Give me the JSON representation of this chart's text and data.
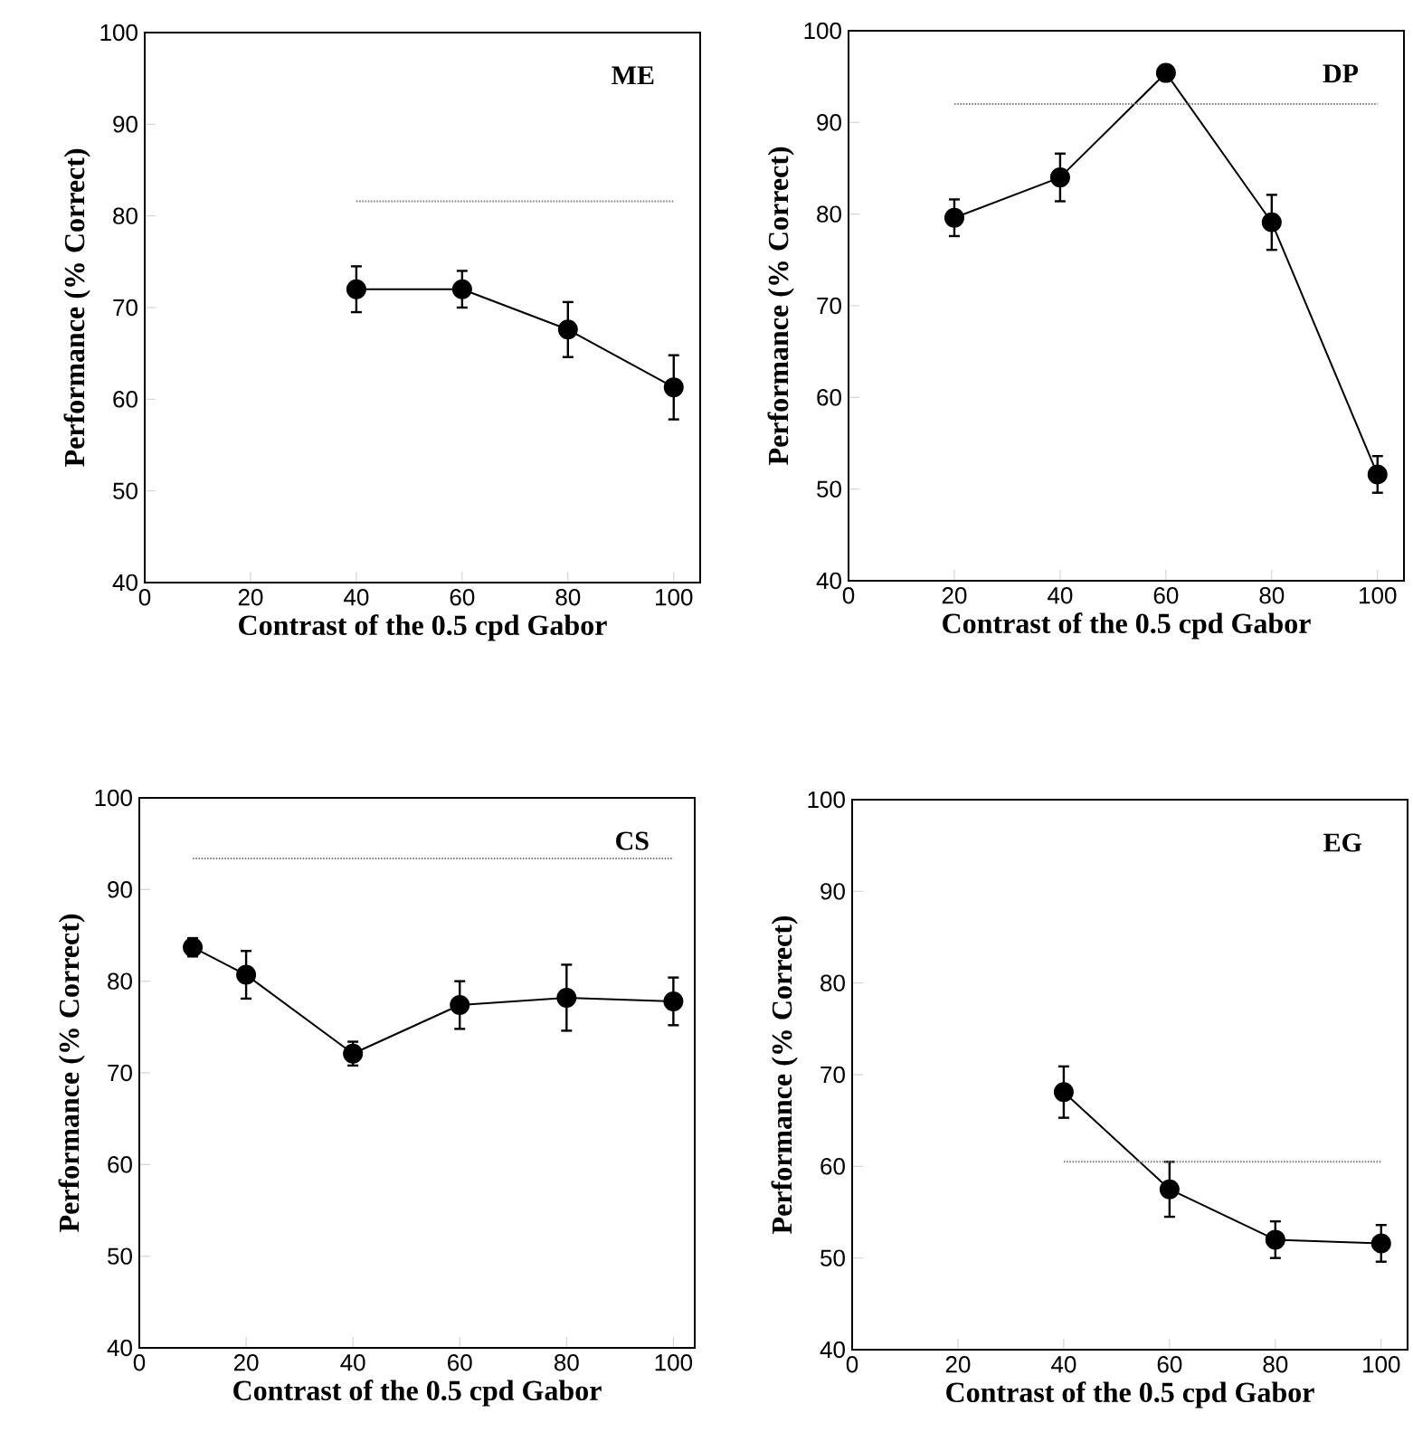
{
  "chart_data": [
    {
      "type": "line",
      "xlabel": "Contrast of the 0.5 cpd Gabor",
      "ylabel": "Performance (% Correct)",
      "xlim": [
        0,
        105
      ],
      "ylim": [
        40,
        100
      ],
      "xticks": [
        0,
        20,
        40,
        60,
        80,
        100
      ],
      "yticks": [
        40,
        50,
        60,
        70,
        80,
        90,
        100
      ],
      "marker": "circle",
      "annotations": [
        "ME"
      ],
      "series": [
        {
          "x": [
            40,
            60,
            80,
            100
          ],
          "values": [
            72.0,
            72.0,
            67.6,
            61.3
          ],
          "errors": [
            2.5,
            2,
            3,
            3.5
          ],
          "color": "#000000"
        },
        {
          "type": "line",
          "x": [
            40,
            100
          ],
          "values": [
            81.6,
            81.6
          ],
          "color": "#808080",
          "line_style": "dotted",
          "marker": "none"
        }
      ]
    },
    {
      "type": "line",
      "xlabel": "Contrast of the 0.5 cpd Gabor",
      "ylabel": "Performance (% Correct)",
      "xlim": [
        0,
        105
      ],
      "ylim": [
        40,
        100
      ],
      "xticks": [
        0,
        20,
        40,
        60,
        80,
        100
      ],
      "yticks": [
        40,
        50,
        60,
        70,
        80,
        90,
        100
      ],
      "marker": "circle",
      "annotations": [
        "DP"
      ],
      "series": [
        {
          "x": [
            20,
            40,
            60,
            80,
            100
          ],
          "values": [
            79.6,
            84.0,
            95.4,
            79.1,
            51.6
          ],
          "errors": [
            2,
            2.6,
            0.6,
            3,
            2
          ],
          "color": "#000000"
        },
        {
          "type": "line",
          "x": [
            20,
            100
          ],
          "values": [
            92.0,
            92.0
          ],
          "color": "#808080",
          "line_style": "dotted",
          "marker": "none"
        }
      ]
    },
    {
      "type": "line",
      "xlabel": "Contrast of the 0.5 cpd Gabor",
      "ylabel": "Performance (% Correct)",
      "xlim": [
        0,
        104
      ],
      "ylim": [
        40,
        100
      ],
      "xticks": [
        0,
        20,
        40,
        60,
        80,
        100
      ],
      "yticks": [
        40,
        50,
        60,
        70,
        80,
        90,
        100
      ],
      "marker": "circle",
      "annotations": [
        "CS"
      ],
      "series": [
        {
          "x": [
            10,
            20,
            40,
            60,
            80,
            100
          ],
          "values": [
            83.7,
            80.7,
            72.1,
            77.4,
            78.2,
            77.8
          ],
          "errors": [
            1,
            2.6,
            1.3,
            2.6,
            3.6,
            2.6
          ],
          "color": "#000000"
        },
        {
          "type": "line",
          "x": [
            10,
            100
          ],
          "values": [
            93.4,
            93.4
          ],
          "color": "#808080",
          "line_style": "dotted",
          "marker": "none"
        }
      ]
    },
    {
      "type": "line",
      "xlabel": "Contrast of the 0.5 cpd Gabor",
      "ylabel": "Performance (% Correct)",
      "xlim": [
        0,
        105
      ],
      "ylim": [
        40,
        100
      ],
      "xticks": [
        0,
        20,
        40,
        60,
        80,
        100
      ],
      "yticks": [
        40,
        50,
        60,
        70,
        80,
        90,
        100
      ],
      "marker": "circle",
      "annotations": [
        "EG"
      ],
      "series": [
        {
          "x": [
            40,
            60,
            80,
            100
          ],
          "values": [
            68.1,
            57.5,
            52.0,
            51.6
          ],
          "errors": [
            2.8,
            3,
            2,
            2
          ],
          "color": "#000000"
        },
        {
          "type": "line",
          "x": [
            40,
            100
          ],
          "values": [
            60.5,
            60.5
          ],
          "color": "#808080",
          "line_style": "dotted",
          "marker": "none"
        }
      ]
    }
  ]
}
